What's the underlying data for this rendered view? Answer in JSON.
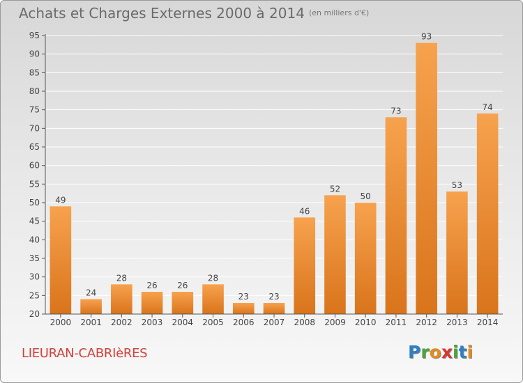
{
  "header": {
    "title": "Achats et Charges Externes 2000 à 2014",
    "subtitle": "(en milliers d'€)"
  },
  "footer": {
    "town": "LIEURAN-CABRIèRES",
    "logo_letters": [
      {
        "char": "P",
        "color": "#2f7fc4"
      },
      {
        "char": "r",
        "color": "#4aa53b"
      },
      {
        "char": "o",
        "color": "#e58a1f"
      },
      {
        "char": "x",
        "color": "#d9352e"
      },
      {
        "char": "i",
        "color": "#4aa53b"
      },
      {
        "char": "t",
        "color": "#2f7fc4"
      },
      {
        "char": "i",
        "color": "#e58a1f"
      }
    ]
  },
  "chart_data": {
    "type": "bar",
    "title": "Achats et Charges Externes 2000 à 2014",
    "subtitle": "(en milliers d'€)",
    "xlabel": "",
    "ylabel": "",
    "categories": [
      "2000",
      "2001",
      "2002",
      "2003",
      "2004",
      "2005",
      "2006",
      "2007",
      "2008",
      "2009",
      "2010",
      "2011",
      "2012",
      "2013",
      "2014"
    ],
    "values": [
      49,
      24,
      28,
      26,
      26,
      28,
      23,
      23,
      46,
      52,
      50,
      73,
      93,
      53,
      74
    ],
    "ylim": [
      20,
      95
    ],
    "yticks": [
      20,
      25,
      30,
      35,
      40,
      45,
      50,
      55,
      60,
      65,
      70,
      75,
      80,
      85,
      90,
      95
    ],
    "grid": true,
    "legend": "none",
    "colors": {
      "bar_top": "#f7a24e",
      "bar_bottom": "#d9741b",
      "grid": "#ffffff",
      "axis": "#555555",
      "text": "#444444"
    }
  }
}
